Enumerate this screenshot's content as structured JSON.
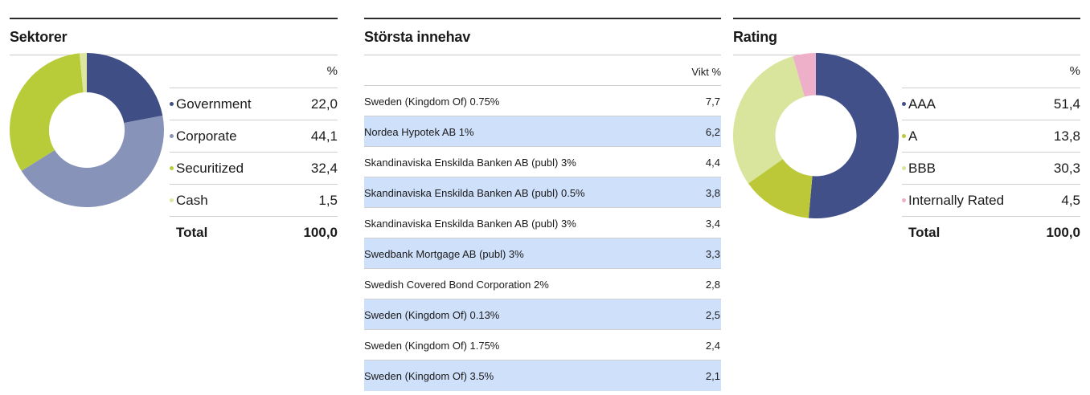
{
  "sectors": {
    "title": "Sektorer",
    "col_header": "%",
    "total_label": "Total",
    "total_value": "100,0"
  },
  "holdings": {
    "title": "Största innehav",
    "col_header": "Vikt %",
    "rows": [
      {
        "name": "Sweden (Kingdom Of) 0.75%",
        "weight": "7,7"
      },
      {
        "name": "Nordea Hypotek AB 1%",
        "weight": "6,2"
      },
      {
        "name": "Skandinaviska Enskilda Banken AB (publ) 3%",
        "weight": "4,4"
      },
      {
        "name": "Skandinaviska Enskilda Banken AB (publ) 0.5%",
        "weight": "3,8"
      },
      {
        "name": "Skandinaviska Enskilda Banken AB (publ) 3%",
        "weight": "3,4"
      },
      {
        "name": "Swedbank Mortgage AB (publ) 3%",
        "weight": "3,3"
      },
      {
        "name": "Swedish Covered Bond Corporation 2%",
        "weight": "2,8"
      },
      {
        "name": "Sweden (Kingdom Of) 0.13%",
        "weight": "2,5"
      },
      {
        "name": "Sweden (Kingdom Of) 1.75%",
        "weight": "2,4"
      },
      {
        "name": "Sweden (Kingdom Of) 3.5%",
        "weight": "2,1"
      }
    ]
  },
  "rating": {
    "title": "Rating",
    "col_header": "%",
    "total_label": "Total",
    "total_value": "100,0"
  },
  "chart_data": [
    {
      "type": "pie",
      "title": "Sektorer",
      "categories": [
        "Government",
        "Corporate",
        "Securitized",
        "Cash"
      ],
      "values": [
        22.0,
        44.1,
        32.4,
        1.5
      ],
      "labels": [
        "22,0",
        "44,1",
        "32,4",
        "1,5"
      ],
      "colors": [
        "#3f4f86",
        "#8793b8",
        "#b8cc3a",
        "#dde6a0"
      ]
    },
    {
      "type": "pie",
      "title": "Rating",
      "categories": [
        "AAA",
        "A",
        "BBB",
        "Internally Rated"
      ],
      "values": [
        51.4,
        13.8,
        30.3,
        4.5
      ],
      "labels": [
        "51,4",
        "13,8",
        "30,3",
        "4,5"
      ],
      "colors": [
        "#42508a",
        "#bcc838",
        "#d9e59d",
        "#eeb0c8"
      ]
    }
  ]
}
